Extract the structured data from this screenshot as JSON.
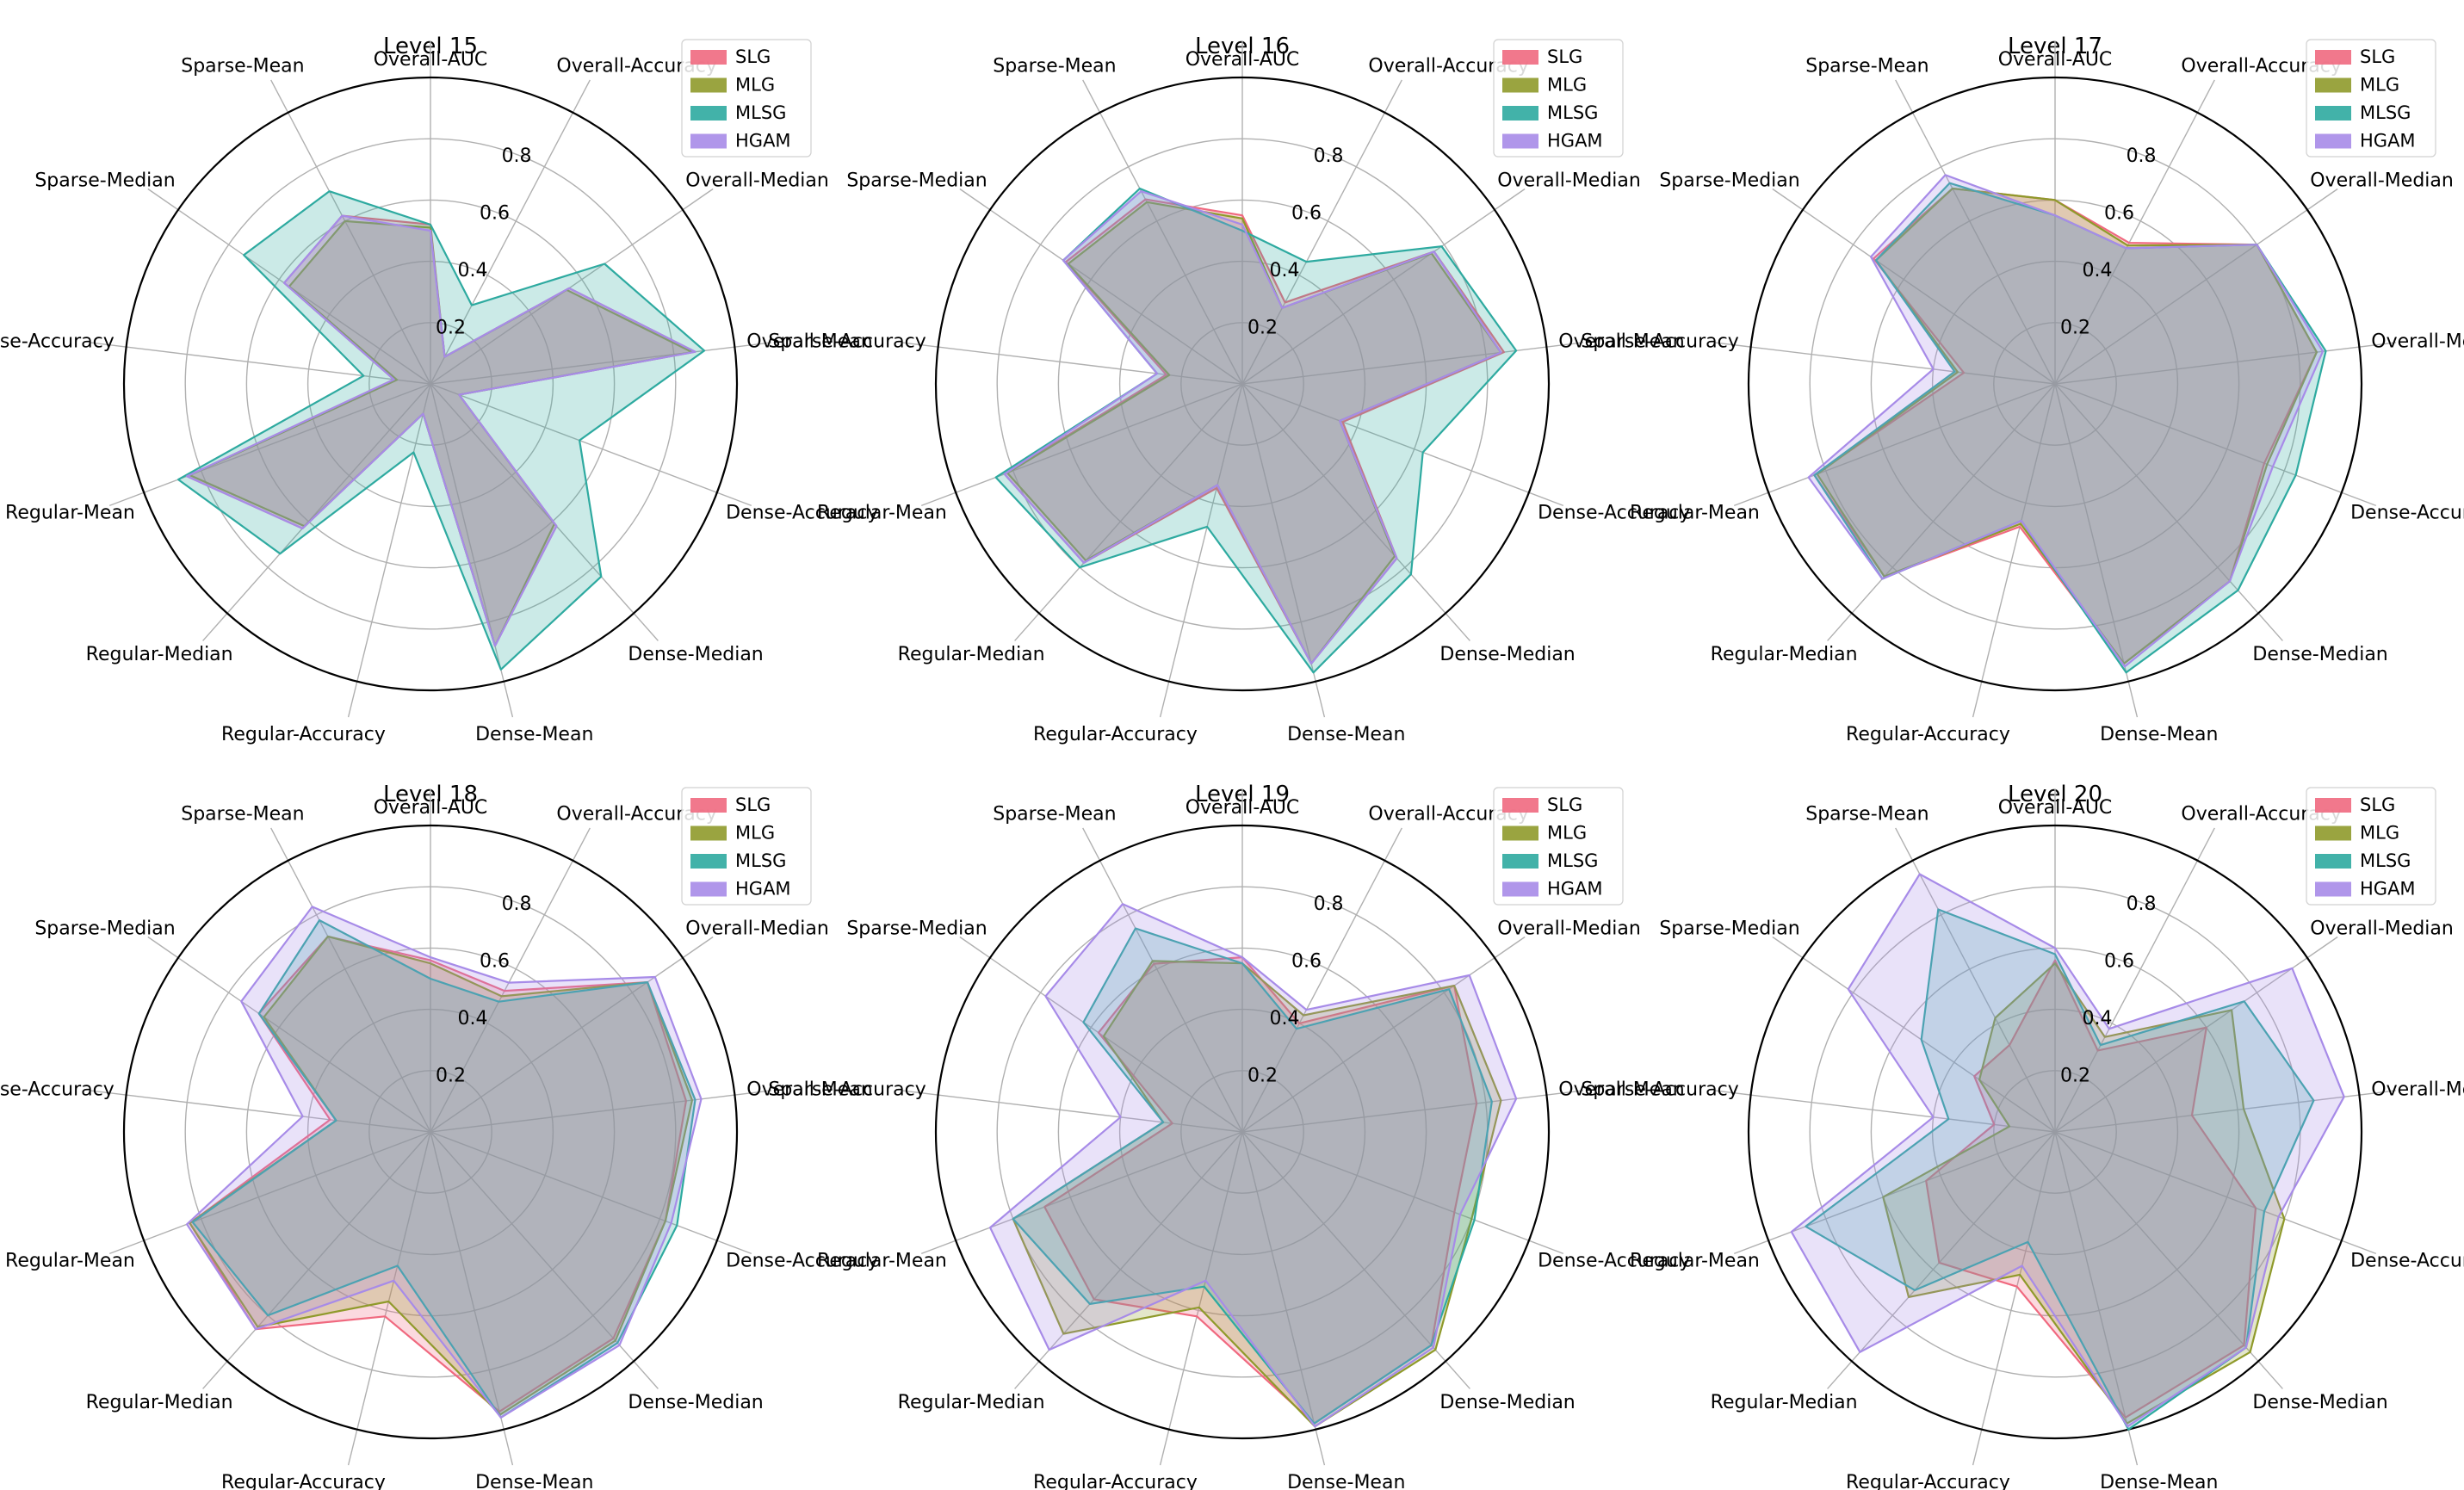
{
  "colors": {
    "SLG": "#f0697f",
    "MLG": "#8f9a2b",
    "MLSG": "#2eaaa0",
    "HGAM": "#a78be8",
    "grid": "#b0b0b0",
    "outer": "#000000"
  },
  "chart_data": [
    {
      "type": "radar",
      "title": "Level 15",
      "axes": [
        "Overall-AUC",
        "Overall-Accuracy",
        "Overall-Median",
        "Overall-Mean",
        "Dense-Accuracy",
        "Dense-Median",
        "Dense-Mean",
        "Regular-Accuracy",
        "Regular-Median",
        "Regular-Mean",
        "Sparse-Accuracy",
        "Sparse-Median",
        "Sparse-Mean"
      ],
      "rticks": [
        "0.2",
        "0.4",
        "0.6",
        "0.8"
      ],
      "rlim": [
        0,
        1
      ],
      "legend": [
        "SLG",
        "MLG",
        "MLSG",
        "HGAM"
      ],
      "series": [
        {
          "name": "SLG",
          "values": [
            0.52,
            0.1,
            0.55,
            0.87,
            0.1,
            0.62,
            0.88,
            0.1,
            0.63,
            0.85,
            0.12,
            0.58,
            0.62
          ]
        },
        {
          "name": "MLG",
          "values": [
            0.51,
            0.1,
            0.54,
            0.86,
            0.1,
            0.61,
            0.88,
            0.1,
            0.62,
            0.84,
            0.11,
            0.56,
            0.6
          ]
        },
        {
          "name": "MLSG",
          "values": [
            0.52,
            0.29,
            0.69,
            0.9,
            0.52,
            0.84,
            0.96,
            0.23,
            0.74,
            0.88,
            0.22,
            0.74,
            0.71
          ]
        },
        {
          "name": "HGAM",
          "values": [
            0.5,
            0.1,
            0.55,
            0.87,
            0.1,
            0.62,
            0.88,
            0.1,
            0.63,
            0.85,
            0.12,
            0.58,
            0.62
          ]
        }
      ]
    },
    {
      "type": "radar",
      "title": "Level 16",
      "axes": [
        "Overall-AUC",
        "Overall-Accuracy",
        "Overall-Median",
        "Overall-Mean",
        "Dense-Accuracy",
        "Dense-Median",
        "Dense-Mean",
        "Regular-Accuracy",
        "Regular-Median",
        "Regular-Mean",
        "Sparse-Accuracy",
        "Sparse-Median",
        "Sparse-Mean"
      ],
      "rticks": [
        "0.2",
        "0.4",
        "0.6",
        "0.8"
      ],
      "rlim": [
        0,
        1
      ],
      "legend": [
        "SLG",
        "MLG",
        "MLSG",
        "HGAM"
      ],
      "series": [
        {
          "name": "SLG",
          "values": [
            0.55,
            0.3,
            0.76,
            0.86,
            0.35,
            0.76,
            0.94,
            0.35,
            0.78,
            0.83,
            0.25,
            0.7,
            0.68
          ]
        },
        {
          "name": "MLG",
          "values": [
            0.54,
            0.28,
            0.75,
            0.85,
            0.34,
            0.75,
            0.94,
            0.34,
            0.77,
            0.82,
            0.24,
            0.69,
            0.67
          ]
        },
        {
          "name": "MLSG",
          "values": [
            0.5,
            0.45,
            0.79,
            0.9,
            0.63,
            0.83,
            0.97,
            0.48,
            0.8,
            0.86,
            0.28,
            0.71,
            0.72
          ]
        },
        {
          "name": "HGAM",
          "values": [
            0.52,
            0.28,
            0.76,
            0.85,
            0.34,
            0.76,
            0.94,
            0.34,
            0.78,
            0.83,
            0.28,
            0.71,
            0.71
          ]
        }
      ]
    },
    {
      "type": "radar",
      "title": "Level 17",
      "axes": [
        "Overall-AUC",
        "Overall-Accuracy",
        "Overall-Median",
        "Overall-Mean",
        "Dense-Accuracy",
        "Dense-Median",
        "Dense-Mean",
        "Regular-Accuracy",
        "Regular-Median",
        "Regular-Mean",
        "Sparse-Accuracy",
        "Sparse-Median",
        "Sparse-Mean"
      ],
      "rticks": [
        "0.2",
        "0.4",
        "0.6",
        "0.8"
      ],
      "rlim": [
        0,
        1
      ],
      "legend": [
        "SLG",
        "MLG",
        "MLSG",
        "HGAM"
      ],
      "series": [
        {
          "name": "SLG",
          "values": [
            0.6,
            0.52,
            0.8,
            0.86,
            0.73,
            0.86,
            0.94,
            0.48,
            0.84,
            0.84,
            0.3,
            0.72,
            0.72
          ]
        },
        {
          "name": "MLG",
          "values": [
            0.6,
            0.51,
            0.8,
            0.86,
            0.74,
            0.86,
            0.94,
            0.47,
            0.84,
            0.83,
            0.32,
            0.71,
            0.72
          ]
        },
        {
          "name": "MLSG",
          "values": [
            0.55,
            0.5,
            0.8,
            0.89,
            0.84,
            0.9,
            0.97,
            0.46,
            0.85,
            0.84,
            0.33,
            0.71,
            0.74
          ]
        },
        {
          "name": "HGAM",
          "values": [
            0.55,
            0.5,
            0.8,
            0.88,
            0.76,
            0.86,
            0.95,
            0.46,
            0.85,
            0.86,
            0.4,
            0.73,
            0.77
          ]
        }
      ]
    },
    {
      "type": "radar",
      "title": "Level 18",
      "axes": [
        "Overall-AUC",
        "Overall-Accuracy",
        "Overall-Median",
        "Overall-Mean",
        "Dense-Accuracy",
        "Dense-Median",
        "Dense-Mean",
        "Regular-Accuracy",
        "Regular-Median",
        "Regular-Mean",
        "Sparse-Accuracy",
        "Sparse-Median",
        "Sparse-Mean"
      ],
      "rticks": [
        "0.2",
        "0.4",
        "0.6",
        "0.8"
      ],
      "rlim": [
        0,
        1
      ],
      "legend": [
        "SLG",
        "MLG",
        "MLSG",
        "HGAM"
      ],
      "series": [
        {
          "name": "SLG",
          "values": [
            0.56,
            0.52,
            0.86,
            0.84,
            0.82,
            0.9,
            0.94,
            0.62,
            0.86,
            0.84,
            0.33,
            0.68,
            0.72
          ]
        },
        {
          "name": "MLG",
          "values": [
            0.55,
            0.5,
            0.86,
            0.86,
            0.82,
            0.91,
            0.95,
            0.57,
            0.85,
            0.84,
            0.31,
            0.66,
            0.72
          ]
        },
        {
          "name": "MLSG",
          "values": [
            0.5,
            0.48,
            0.86,
            0.87,
            0.86,
            0.92,
            0.96,
            0.45,
            0.8,
            0.83,
            0.31,
            0.68,
            0.78
          ]
        },
        {
          "name": "HGAM",
          "values": [
            0.57,
            0.55,
            0.89,
            0.89,
            0.84,
            0.93,
            0.96,
            0.5,
            0.86,
            0.85,
            0.42,
            0.75,
            0.83
          ]
        }
      ]
    },
    {
      "type": "radar",
      "title": "Level 19",
      "axes": [
        "Overall-AUC",
        "Overall-Accuracy",
        "Overall-Median",
        "Overall-Mean",
        "Dense-Accuracy",
        "Dense-Median",
        "Dense-Mean",
        "Regular-Accuracy",
        "Regular-Median",
        "Regular-Mean",
        "Sparse-Accuracy",
        "Sparse-Median",
        "Sparse-Mean"
      ],
      "rticks": [
        "0.2",
        "0.4",
        "0.6",
        "0.8"
      ],
      "rlim": [
        0,
        1
      ],
      "legend": [
        "SLG",
        "MLG",
        "MLSG",
        "HGAM"
      ],
      "series": [
        {
          "name": "SLG",
          "values": [
            0.57,
            0.4,
            0.84,
            0.77,
            0.74,
            0.93,
            0.98,
            0.62,
            0.73,
            0.69,
            0.23,
            0.57,
            0.62
          ]
        },
        {
          "name": "MLG",
          "values": [
            0.55,
            0.43,
            0.84,
            0.85,
            0.8,
            0.95,
            0.99,
            0.59,
            0.88,
            0.8,
            0.26,
            0.55,
            0.63
          ]
        },
        {
          "name": "MLSG",
          "values": [
            0.55,
            0.38,
            0.82,
            0.82,
            0.81,
            0.93,
            0.98,
            0.52,
            0.75,
            0.8,
            0.26,
            0.63,
            0.75
          ]
        },
        {
          "name": "HGAM",
          "values": [
            0.57,
            0.45,
            0.9,
            0.9,
            0.76,
            0.94,
            0.99,
            0.5,
            0.95,
            0.88,
            0.4,
            0.78,
            0.84
          ]
        }
      ]
    },
    {
      "type": "radar",
      "title": "Level 20",
      "axes": [
        "Overall-AUC",
        "Overall-Accuracy",
        "Overall-Median",
        "Overall-Mean",
        "Dense-Accuracy",
        "Dense-Median",
        "Dense-Mean",
        "Regular-Accuracy",
        "Regular-Median",
        "Regular-Mean",
        "Sparse-Accuracy",
        "Sparse-Median",
        "Sparse-Mean"
      ],
      "rticks": [
        "0.2",
        "0.4",
        "0.6",
        "0.8"
      ],
      "rlim": [
        0,
        1
      ],
      "legend": [
        "SLG",
        "MLG",
        "MLSG",
        "HGAM"
      ],
      "series": [
        {
          "name": "SLG",
          "values": [
            0.56,
            0.3,
            0.6,
            0.45,
            0.7,
            0.93,
            0.96,
            0.52,
            0.57,
            0.45,
            0.2,
            0.32,
            0.32
          ]
        },
        {
          "name": "MLG",
          "values": [
            0.55,
            0.35,
            0.7,
            0.62,
            0.8,
            0.96,
            0.98,
            0.48,
            0.72,
            0.6,
            0.15,
            0.3,
            0.42
          ]
        },
        {
          "name": "MLSG",
          "values": [
            0.58,
            0.32,
            0.75,
            0.85,
            0.73,
            0.94,
            1.0,
            0.37,
            0.69,
            0.87,
            0.35,
            0.53,
            0.82
          ]
        },
        {
          "name": "HGAM",
          "values": [
            0.6,
            0.38,
            0.94,
            0.95,
            0.78,
            0.94,
            0.99,
            0.45,
            0.96,
            0.92,
            0.4,
            0.82,
            0.95
          ]
        }
      ]
    }
  ]
}
